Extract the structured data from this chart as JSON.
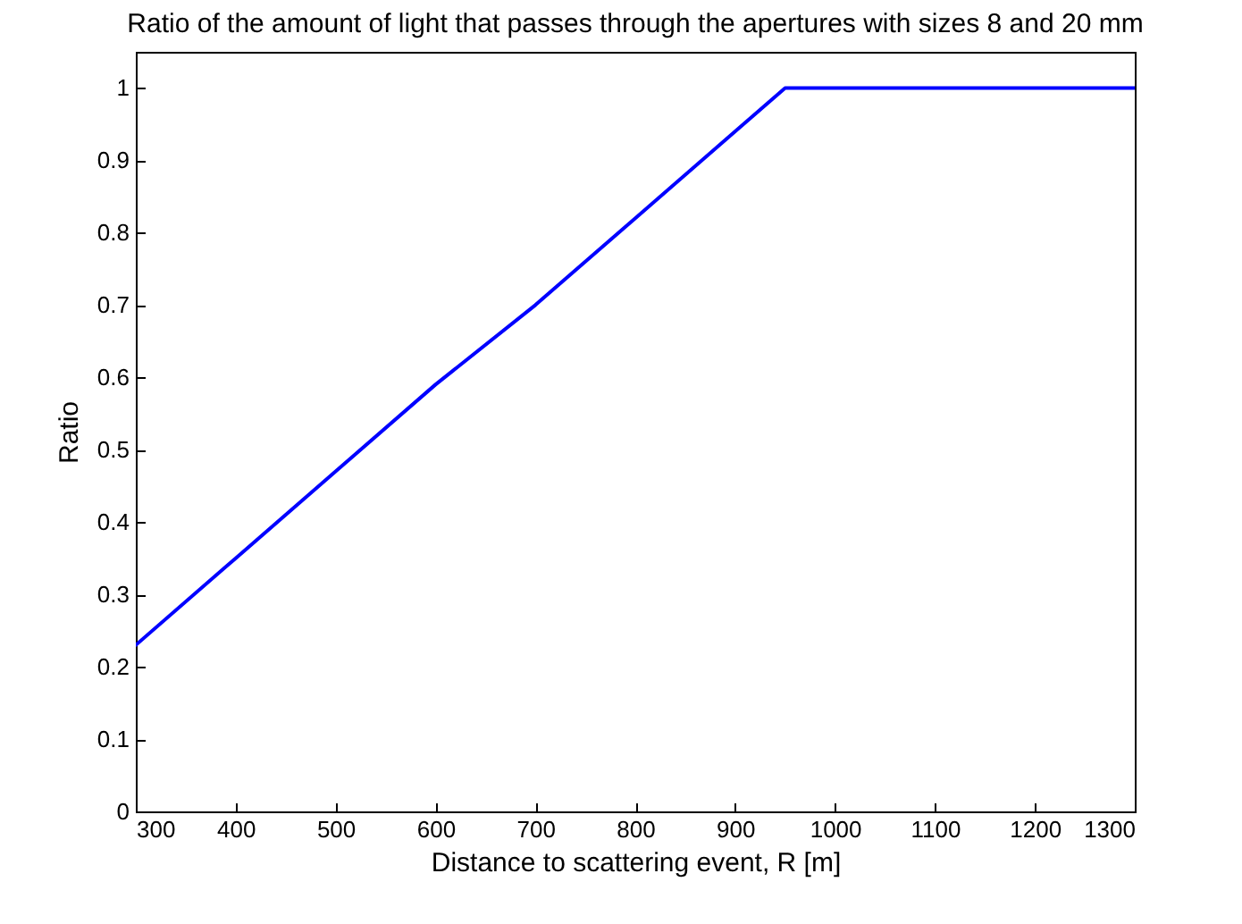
{
  "chart_data": {
    "type": "line",
    "title": "Ratio of the amount of light that passes through the apertures with sizes 8 and 20 mm",
    "xlabel": "Distance to scattering event, R [m]",
    "ylabel": "Ratio",
    "x": [
      300,
      400,
      500,
      600,
      700,
      800,
      900,
      950,
      1300
    ],
    "series": [
      {
        "color": "#0000ff",
        "values": [
          0.23,
          0.35,
          0.47,
          0.59,
          0.7,
          0.82,
          0.94,
          1,
          1
        ]
      }
    ],
    "xlim": [
      300,
      1300
    ],
    "xticks": [
      300,
      400,
      500,
      600,
      700,
      800,
      900,
      1000,
      1100,
      1200,
      1300
    ],
    "ylim": [
      0,
      1.05
    ],
    "yticks": [
      0,
      0.1,
      0.2,
      0.3,
      0.4,
      0.5,
      0.6,
      0.7,
      0.8,
      0.9,
      1
    ],
    "grid": false,
    "legend": false,
    "marker": "none",
    "line_style": "solid"
  }
}
